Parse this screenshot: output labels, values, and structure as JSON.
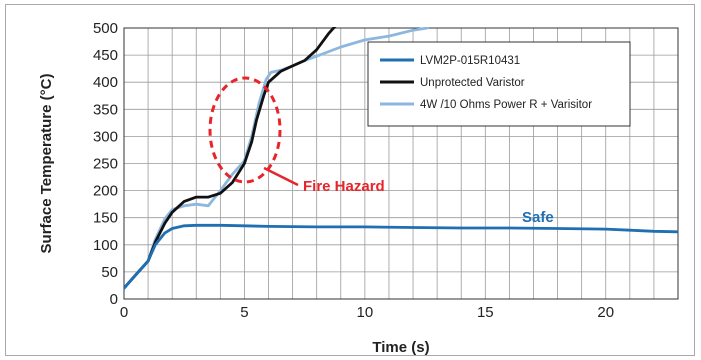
{
  "chart_data": {
    "type": "line",
    "title": "",
    "xlabel": "Time (s)",
    "ylabel": "Surface Temperature (°C)",
    "xlim": [
      0,
      23
    ],
    "ylim": [
      0,
      500
    ],
    "xticks": [
      0,
      5,
      10,
      15,
      20
    ],
    "yticks": [
      0,
      50,
      100,
      150,
      200,
      250,
      300,
      350,
      400,
      450,
      500
    ],
    "grid": true,
    "legend_position": "top-right",
    "series": [
      {
        "name": "LVM2P-015R10431",
        "color": "#1f6fb2",
        "x": [
          0,
          0.5,
          1,
          1.3,
          1.7,
          2,
          2.5,
          3,
          4,
          5,
          6,
          8,
          10,
          12,
          14,
          16,
          18,
          20,
          21,
          22,
          23
        ],
        "y": [
          20,
          45,
          70,
          100,
          122,
          130,
          135,
          136,
          136,
          135,
          134,
          133,
          133,
          132,
          131,
          131,
          130,
          129,
          127,
          125,
          124
        ]
      },
      {
        "name": "Unprotected Varistor",
        "color": "#111111",
        "x": [
          0,
          0.5,
          1,
          1.3,
          1.7,
          2,
          2.5,
          3,
          3.5,
          4,
          4.5,
          5,
          5.3,
          5.5,
          5.8,
          6,
          6.5,
          7,
          7.5,
          8,
          8.5,
          8.8
        ],
        "y": [
          20,
          45,
          70,
          105,
          140,
          160,
          180,
          188,
          188,
          195,
          215,
          250,
          290,
          330,
          375,
          400,
          420,
          430,
          440,
          460,
          490,
          505
        ]
      },
      {
        "name": "4W /10 Ohms Power R + Varisitor",
        "color": "#8db7df",
        "x": [
          0,
          0.5,
          1,
          1.3,
          1.7,
          2,
          2.5,
          3,
          3.5,
          4,
          4.5,
          5,
          5.3,
          5.6,
          5.9,
          6.1,
          6.5,
          7,
          7.5,
          8,
          9,
          10,
          11,
          12,
          12.6
        ],
        "y": [
          20,
          45,
          70,
          110,
          148,
          165,
          172,
          175,
          172,
          200,
          230,
          255,
          300,
          360,
          405,
          418,
          422,
          430,
          440,
          448,
          465,
          478,
          485,
          496,
          500
        ]
      }
    ],
    "annotations": {
      "fire_hazard": "Fire Hazard",
      "safe": "Safe",
      "fire_color": "#e8252a",
      "safe_color": "#1f6fb2"
    }
  }
}
